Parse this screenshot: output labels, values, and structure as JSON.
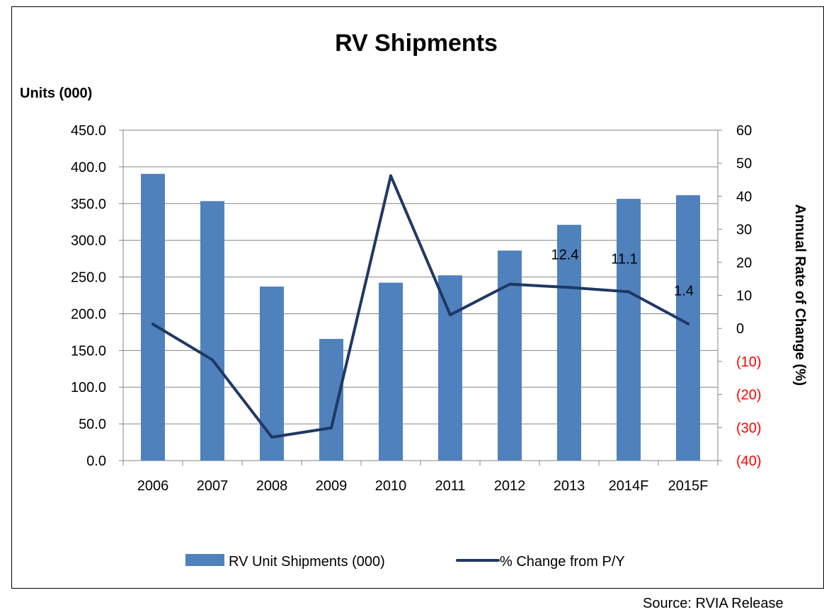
{
  "chart_data": {
    "type": "bar",
    "title": "RV Shipments",
    "ylabel": "Units (000)",
    "y2label": "Annual Rate of Change (%)",
    "categories": [
      "2006",
      "2007",
      "2008",
      "2009",
      "2010",
      "2011",
      "2012",
      "2013",
      "2014F",
      "2015F"
    ],
    "ylim": [
      0,
      450
    ],
    "y2lim": [
      -40,
      60
    ],
    "yticks": [
      "450.0",
      "400.0",
      "350.0",
      "300.0",
      "250.0",
      "200.0",
      "150.0",
      "100.0",
      "50.0",
      "0.0"
    ],
    "y2ticks": [
      "60",
      "50",
      "40",
      "30",
      "20",
      "10",
      "0",
      "(10)",
      "(20)",
      "(30)",
      "(40)"
    ],
    "grid": true,
    "legend_position": "bottom",
    "series": [
      {
        "name": "RV Unit Shipments (000)",
        "type": "bar",
        "axis": "left",
        "color": "#4f81bd",
        "values": [
          390.5,
          353.4,
          237.0,
          165.7,
          242.3,
          252.3,
          286.0,
          321.1,
          356.5,
          361.5
        ]
      },
      {
        "name": "% Change from P/Y",
        "type": "line",
        "axis": "right",
        "color": "#1f3864",
        "values": [
          1.3,
          -9.5,
          -32.9,
          -30.1,
          46.2,
          4.1,
          13.4,
          12.4,
          11.1,
          1.4
        ],
        "data_labels": [
          "",
          "",
          "",
          "",
          "",
          "",
          "",
          "12.4",
          "11.1",
          "1.4"
        ]
      }
    ],
    "colors": {
      "negative_tick": "#ff0000",
      "axis": "#868686",
      "grid": "#868686"
    }
  },
  "source_note": "Source: RVIA Release"
}
